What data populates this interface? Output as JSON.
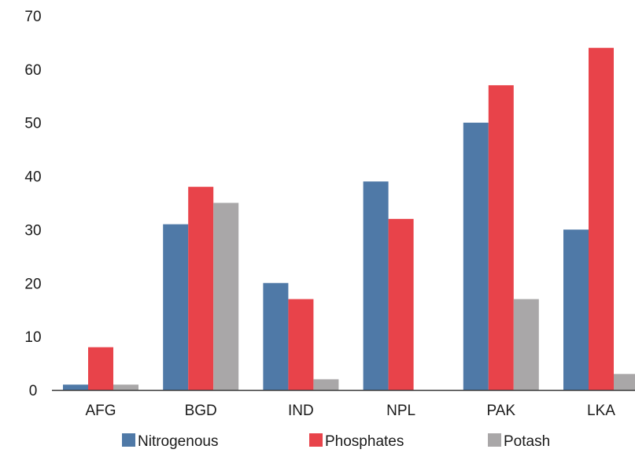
{
  "chart_data": {
    "type": "bar",
    "categories": [
      "AFG",
      "BGD",
      "IND",
      "NPL",
      "PAK",
      "LKA"
    ],
    "series": [
      {
        "name": "Nitrogenous",
        "color": "#4f79a7",
        "values": [
          1,
          31,
          20,
          39,
          50,
          30
        ]
      },
      {
        "name": "Phosphates",
        "color": "#e8434a",
        "values": [
          8,
          38,
          17,
          32,
          57,
          64
        ]
      },
      {
        "name": "Potash",
        "color": "#a9a7a8",
        "values": [
          1,
          35,
          2,
          0,
          17,
          3
        ]
      }
    ],
    "yticks": [
      "0",
      "10",
      "20",
      "30",
      "40",
      "50",
      "60",
      "70"
    ],
    "ylim": [
      0,
      70
    ],
    "grid": false,
    "legend_position": "bottom"
  }
}
